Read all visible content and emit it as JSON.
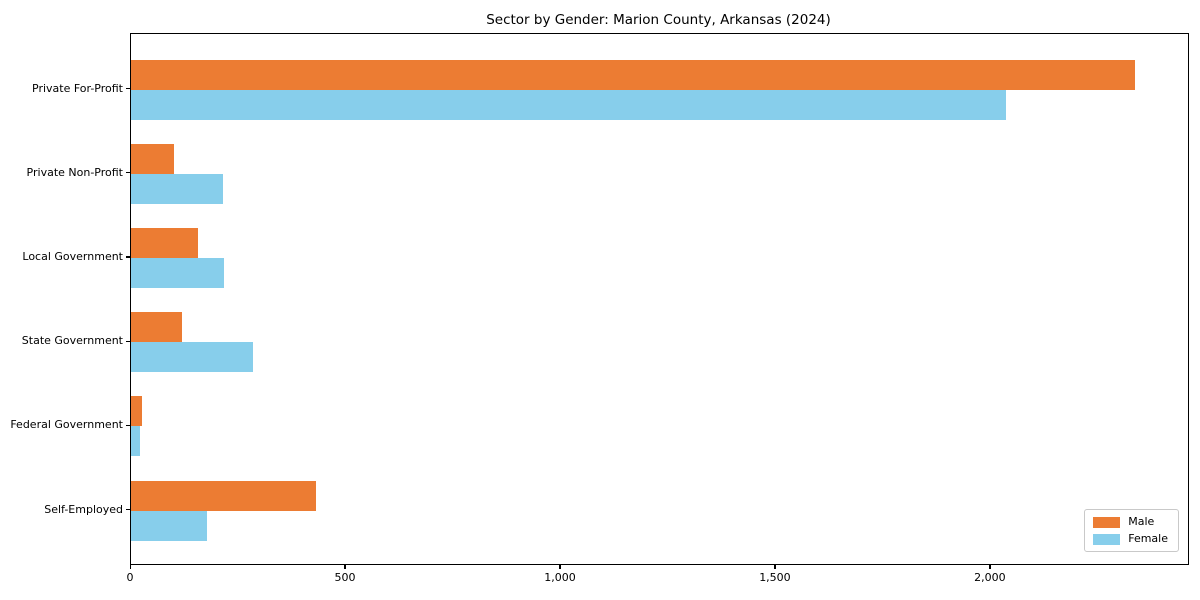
{
  "chart_data": {
    "type": "bar",
    "orientation": "horizontal",
    "title": "Sector by Gender: Marion County, Arkansas (2024)",
    "categories": [
      "Private For-Profit",
      "Private Non-Profit",
      "Local Government",
      "State Government",
      "Federal Government",
      "Self-Employed"
    ],
    "series": [
      {
        "name": "Male",
        "color": "#EC7C33",
        "values": [
          2340,
          100,
          156,
          119,
          26,
          430
        ]
      },
      {
        "name": "Female",
        "color": "#87CEEB",
        "values": [
          2040,
          214,
          217,
          284,
          21,
          177
        ]
      }
    ],
    "xlabel": "",
    "ylabel": "",
    "xlim": [
      0,
      2463
    ],
    "xticks": {
      "values": [
        0,
        500,
        1000,
        1500,
        2000
      ],
      "labels": [
        "0",
        "500",
        "1,000",
        "1,500",
        "2,000"
      ]
    },
    "grid": false,
    "legend_position": "lower right",
    "frame": true
  }
}
